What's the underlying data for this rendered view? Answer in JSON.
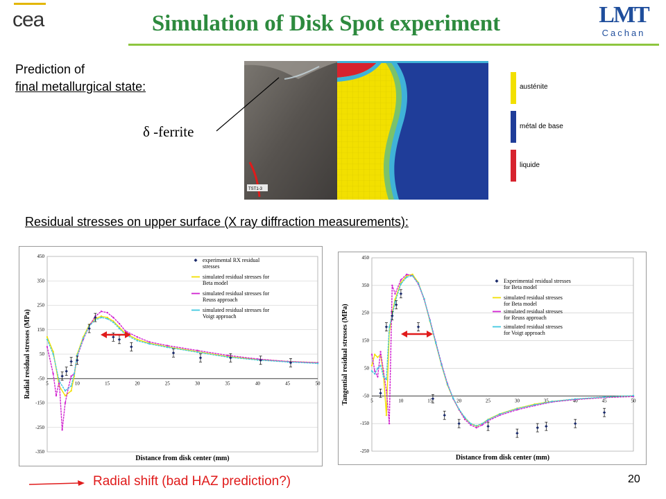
{
  "header": {
    "title": "Simulation of Disk Spot experiment",
    "left_logo_text": "cea",
    "right_logo_text": "LMT",
    "right_logo_subtext": "Cachan"
  },
  "prediction": {
    "line1": "Prediction of",
    "line2": "final metallurgical state:",
    "ferrite_label": "δ -ferrite",
    "micro_tag": "TST1-3"
  },
  "phase_legend": [
    {
      "label": "austénite",
      "color": "#f2e000"
    },
    {
      "label": "métal de base",
      "color": "#1f3d99"
    },
    {
      "label": "liquide",
      "color": "#d7232e"
    }
  ],
  "residual_title": "Residual stresses on upper surface (X ray diffraction measurements):",
  "footer": {
    "shift_text": "Radial shift (bad HAZ prediction?)",
    "page_number": "20"
  },
  "chart_data": [
    {
      "type": "line",
      "xlabel": "Distance from disk center (mm)",
      "ylabel": "Radial residual stresses (MPa)",
      "xlim": [
        5,
        50
      ],
      "ylim": [
        -350,
        450
      ],
      "xticks": [
        "5",
        "10",
        "15",
        "20",
        "25",
        "30",
        "35",
        "40",
        "45",
        "50"
      ],
      "yticks": [
        "450",
        "350",
        "250",
        "150",
        "50",
        "-50",
        "-150",
        "-250",
        "-350"
      ],
      "legend": [
        "experimental RX residual stresses",
        "simulated residual stresses for Beta model",
        "simulated residual stresses for Reuss approach",
        "simulated residual stresses for Voigt approach"
      ],
      "experimental": {
        "x": [
          7.5,
          8.2,
          9.0,
          10.0,
          12.0,
          13.0,
          16.0,
          17.0,
          19.0,
          26.0,
          30.5,
          35.5,
          40.5,
          45.5
        ],
        "y": [
          -40,
          -20,
          20,
          25,
          155,
          200,
          120,
          110,
          80,
          55,
          35,
          35,
          25,
          15
        ]
      },
      "series": [
        {
          "name": "simulated residual stresses for Beta model",
          "color": "#f2e000",
          "x": [
            5,
            6,
            7,
            8,
            9,
            9.5,
            10,
            11,
            12,
            13,
            14,
            15,
            16,
            17,
            18,
            20,
            22,
            25,
            30,
            35,
            40,
            45,
            50
          ],
          "y": [
            120,
            60,
            -80,
            -120,
            -100,
            -40,
            50,
            120,
            170,
            195,
            205,
            200,
            185,
            160,
            135,
            110,
            95,
            80,
            60,
            40,
            28,
            20,
            15
          ]
        },
        {
          "name": "simulated residual stresses for Reuss approach",
          "color": "#d020d0",
          "x": [
            5,
            6,
            6.5,
            7,
            7.5,
            8,
            8.5,
            9,
            9.5,
            10,
            11,
            12,
            13,
            14,
            15,
            16,
            17,
            18,
            20,
            22,
            25,
            30,
            35,
            40,
            45,
            50
          ],
          "y": [
            80,
            -30,
            -120,
            -60,
            -260,
            -150,
            -90,
            -40,
            -30,
            40,
            110,
            165,
            205,
            225,
            220,
            200,
            175,
            145,
            120,
            100,
            85,
            65,
            45,
            30,
            20,
            15
          ]
        },
        {
          "name": "simulated residual stresses for Voigt approach",
          "color": "#40c8e0",
          "x": [
            5,
            6,
            7,
            8,
            9,
            9.5,
            10,
            11,
            12,
            13,
            14,
            15,
            16,
            17,
            18,
            20,
            22,
            25,
            30,
            35,
            40,
            45,
            50
          ],
          "y": [
            110,
            50,
            -60,
            -100,
            -80,
            -30,
            45,
            115,
            165,
            190,
            200,
            195,
            180,
            155,
            130,
            105,
            92,
            78,
            58,
            38,
            26,
            18,
            12
          ]
        }
      ]
    },
    {
      "type": "line",
      "xlabel": "Distance from disk center (mm)",
      "ylabel": "Tangential residual stresses (MPa)",
      "xlim": [
        5,
        50
      ],
      "ylim": [
        -250,
        450
      ],
      "xticks": [
        "5",
        "10",
        "15",
        "20",
        "25",
        "30",
        "35",
        "40",
        "45",
        "50"
      ],
      "yticks": [
        "450",
        "350",
        "250",
        "150",
        "50",
        "-50",
        "-150",
        "-250"
      ],
      "legend": [
        "Experimental residual stresses for Beta model",
        "simulated residual stresses for Beta model",
        "simulated residual stresses for Reuss approach",
        "simulated residual stresses for Voigt approach"
      ],
      "experimental": {
        "x": [
          6.5,
          7.5,
          8.5,
          9.2,
          10.0,
          13.0,
          15.5,
          17.5,
          20.0,
          25.0,
          30.0,
          33.5,
          35.0,
          40.0,
          45.0
        ],
        "y": [
          -40,
          200,
          240,
          280,
          320,
          200,
          -60,
          -120,
          -150,
          -160,
          -185,
          -165,
          -160,
          -150,
          -110
        ]
      },
      "series": [
        {
          "name": "simulated residual stresses for Beta model",
          "color": "#f2e000",
          "x": [
            5,
            5.5,
            6,
            6.5,
            7,
            7.5,
            8,
            8.5,
            9,
            10,
            11,
            12,
            13,
            14,
            15,
            16,
            17,
            18,
            19,
            20,
            21,
            22,
            23,
            24,
            25,
            27,
            30,
            33,
            36,
            40,
            45,
            50
          ],
          "y": [
            60,
            100,
            90,
            100,
            30,
            -120,
            180,
            250,
            300,
            360,
            385,
            390,
            360,
            300,
            220,
            140,
            60,
            -10,
            -60,
            -100,
            -130,
            -150,
            -160,
            -150,
            -135,
            -115,
            -95,
            -80,
            -70,
            -62,
            -55,
            -50
          ]
        },
        {
          "name": "simulated residual stresses for Reuss approach",
          "color": "#d020d0",
          "x": [
            5,
            5.5,
            6,
            6.5,
            7,
            7.5,
            8,
            8.5,
            9,
            10,
            11,
            12,
            13,
            14,
            15,
            16,
            17,
            18,
            19,
            20,
            21,
            22,
            23,
            24,
            25,
            27,
            30,
            33,
            36,
            40,
            45,
            50
          ],
          "y": [
            100,
            40,
            20,
            110,
            40,
            -30,
            -150,
            350,
            320,
            370,
            390,
            385,
            355,
            300,
            225,
            145,
            65,
            -5,
            -60,
            -100,
            -135,
            -155,
            -165,
            -155,
            -140,
            -120,
            -100,
            -85,
            -72,
            -63,
            -56,
            -52
          ]
        },
        {
          "name": "simulated residual stresses for Voigt approach",
          "color": "#40c8e0",
          "x": [
            5,
            5.5,
            6,
            6.5,
            7,
            7.5,
            8,
            8.5,
            9,
            10,
            11,
            12,
            13,
            14,
            15,
            16,
            17,
            18,
            19,
            20,
            21,
            22,
            23,
            24,
            25,
            27,
            30,
            33,
            36,
            40,
            45,
            50
          ],
          "y": [
            40,
            30,
            50,
            60,
            20,
            10,
            200,
            240,
            290,
            355,
            380,
            385,
            358,
            302,
            222,
            142,
            62,
            -8,
            -58,
            -98,
            -128,
            -150,
            -158,
            -150,
            -136,
            -116,
            -96,
            -82,
            -70,
            -61,
            -54,
            -49
          ]
        }
      ]
    }
  ]
}
